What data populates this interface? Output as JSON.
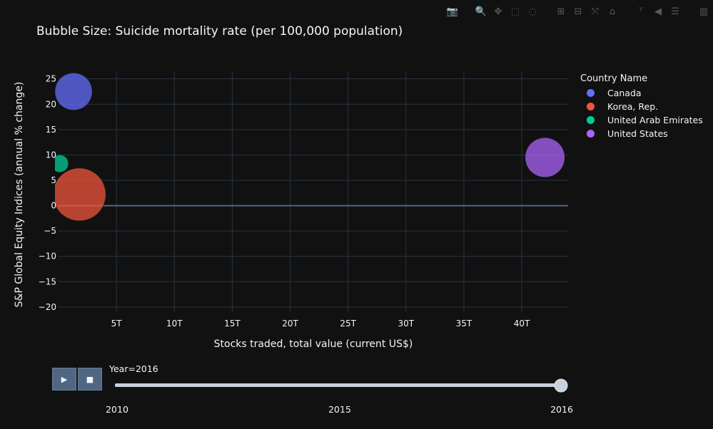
{
  "chart_data": {
    "type": "scatter",
    "title": "Bubble Size: Suicide mortality rate (per 100,000 population)",
    "xlabel": "Stocks traded, total value (current US$)",
    "ylabel": "S&P Global Equity Indices (annual % change)",
    "xlim": [
      0,
      44
    ],
    "ylim": [
      -21,
      26.5
    ],
    "x_ticks": [
      5,
      10,
      15,
      20,
      25,
      30,
      35,
      40
    ],
    "x_tick_labels": [
      "5T",
      "10T",
      "15T",
      "20T",
      "25T",
      "30T",
      "35T",
      "40T"
    ],
    "y_ticks": [
      -20,
      -15,
      -10,
      -5,
      0,
      5,
      10,
      15,
      20,
      25
    ],
    "y_tick_labels": [
      "−20",
      "−15",
      "−10",
      "−5",
      "0",
      "5",
      "10",
      "15",
      "20",
      "25"
    ],
    "grid": true,
    "legend_title": "Country Name",
    "legend_position": "right",
    "series": [
      {
        "name": "Canada",
        "color": "#636efa",
        "x": [
          1.3
        ],
        "y": [
          22.5
        ],
        "size": [
          12.3
        ]
      },
      {
        "name": "Korea, Rep.",
        "color": "#ef553b",
        "x": [
          1.8
        ],
        "y": [
          2.2
        ],
        "size": [
          24.6
        ]
      },
      {
        "name": "United Arab Emirates",
        "color": "#00cc96",
        "x": [
          0.1
        ],
        "y": [
          8.3
        ],
        "size": [
          2.7
        ]
      },
      {
        "name": "United States",
        "color": "#ab63fa",
        "x": [
          42.0
        ],
        "y": [
          9.5
        ],
        "size": [
          13.9
        ]
      }
    ]
  },
  "slider": {
    "current_label": "Year=2016",
    "tick_labels": [
      "2010",
      "2015",
      "2016"
    ],
    "years": [
      2010,
      2015,
      2016
    ],
    "value": 2016
  },
  "controls": {
    "play": "▶",
    "stop": "■"
  },
  "modebar_icons": [
    "camera-icon",
    "zoom-icon",
    "pan-icon",
    "box-select-icon",
    "lasso-icon",
    "zoom-in-icon",
    "zoom-out-icon",
    "autoscale-icon",
    "reset-axes-icon",
    "spike-lines-icon",
    "hover-closest-icon",
    "hover-compare-icon",
    "plotly-logo-icon"
  ]
}
